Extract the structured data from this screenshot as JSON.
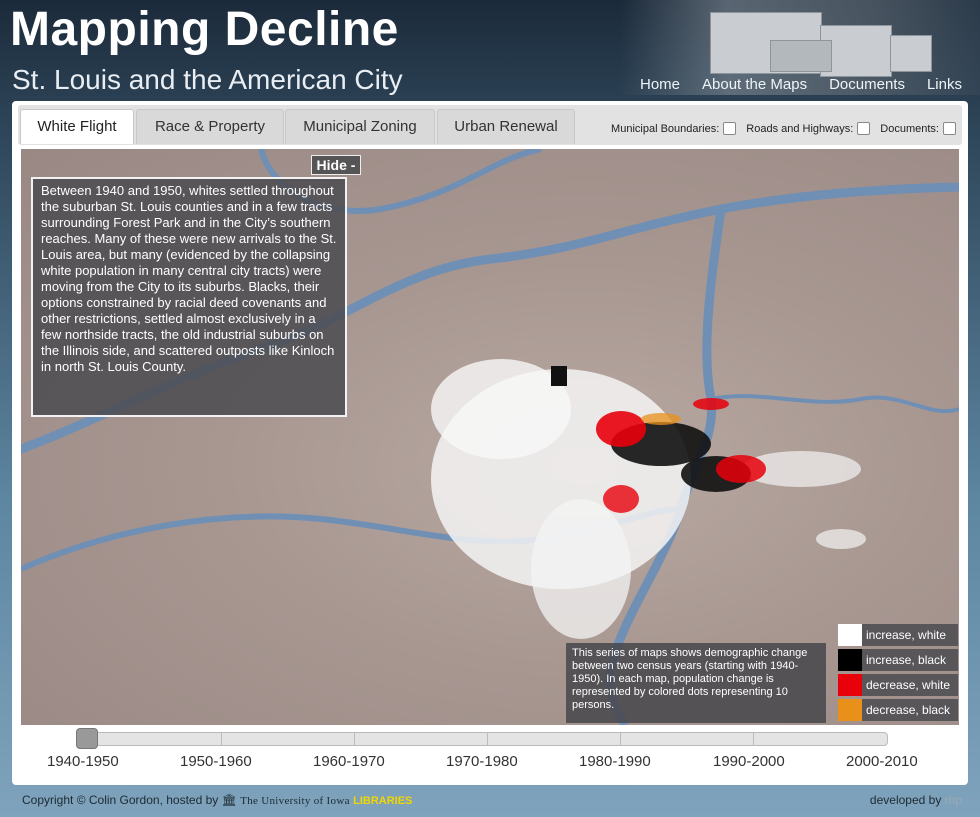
{
  "header": {
    "title": "Mapping Decline",
    "subtitle": "St. Louis and the American City",
    "nav": [
      "Home",
      "About the Maps",
      "Documents",
      "Links"
    ]
  },
  "tabs": [
    {
      "label": "White Flight",
      "active": true
    },
    {
      "label": "Race & Property",
      "active": false
    },
    {
      "label": "Municipal Zoning",
      "active": false
    },
    {
      "label": "Urban Renewal",
      "active": false
    }
  ],
  "toggles": [
    {
      "label": "Municipal Boundaries:",
      "checked": false
    },
    {
      "label": "Roads and Highways:",
      "checked": false
    },
    {
      "label": "Documents:",
      "checked": false
    }
  ],
  "map": {
    "hide_label": "Hide -",
    "description": "Between 1940 and 1950, whites settled throughout the suburban St. Louis counties and in a few tracts surrounding Forest Park and in the City’s southern reaches. Many of these were new arrivals to the St. Louis area, but many (evidenced by the collapsing white population in many central city tracts) were moving from the City to its suburbs. Blacks, their options constrained by racial deed covenants and other restrictions, settled almost exclusively in a few northside tracts, the old industrial suburbs on the Illinois side, and scattered outposts like Kinloch in north St. Louis County.",
    "series_note": "This series of maps shows demographic change between two census years (starting with 1940-1950). In each map, population change is represented by colored dots representing 10 persons."
  },
  "legend": [
    {
      "label": "increase, white",
      "color": "#ffffff"
    },
    {
      "label": "increase, black",
      "color": "#000000"
    },
    {
      "label": "decrease, white",
      "color": "#e8000b"
    },
    {
      "label": "decrease, black",
      "color": "#e8901a"
    }
  ],
  "timeline": {
    "labels": [
      "1940-1950",
      "1950-1960",
      "1960-1970",
      "1970-1980",
      "1980-1990",
      "1990-2000",
      "2000-2010"
    ],
    "selected_index": 0
  },
  "footer": {
    "copyright": "Copyright © Colin Gordon, hosted by",
    "university": "The University of Iowa",
    "libraries": "LIBRARIES",
    "developed": "developed by",
    "developer": "rbp"
  },
  "colors": {
    "accent": "#5d86a1",
    "river": "#6f8fb5",
    "map_base": "#a89791"
  }
}
